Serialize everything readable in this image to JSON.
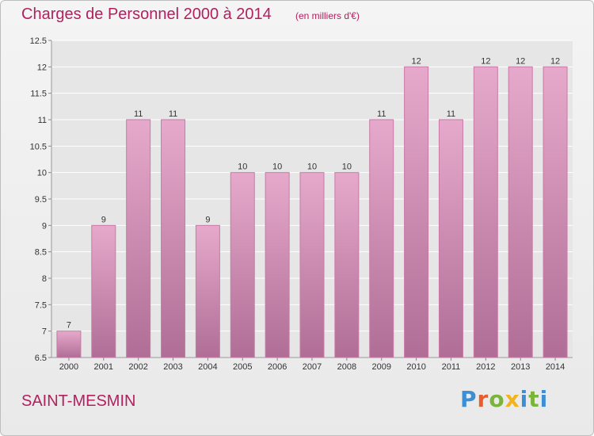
{
  "header": {
    "title": "Charges de Personnel 2000 à 2014",
    "subtitle": "(en milliers d'€)"
  },
  "footer": {
    "city": "SAINT-MESMIN",
    "logo_letters": [
      "P",
      "r",
      "o",
      "x",
      "i",
      "t",
      "i"
    ]
  },
  "chart_data": {
    "type": "bar",
    "title": "Charges de Personnel 2000 à 2014",
    "subtitle": "(en milliers d'€)",
    "xlabel": "",
    "ylabel": "",
    "categories": [
      "2000",
      "2001",
      "2002",
      "2003",
      "2004",
      "2005",
      "2006",
      "2007",
      "2008",
      "2009",
      "2010",
      "2011",
      "2012",
      "2013",
      "2014"
    ],
    "values": [
      7,
      9,
      11,
      11,
      9,
      10,
      10,
      10,
      10,
      11,
      12,
      11,
      12,
      12,
      12
    ],
    "data_labels": [
      "7",
      "9",
      "11",
      "11",
      "9",
      "10",
      "10",
      "10",
      "10",
      "11",
      "12",
      "11",
      "12",
      "12",
      "12"
    ],
    "ylim": [
      6.5,
      12.5
    ],
    "yticks": [
      6.5,
      7,
      7.5,
      8,
      8.5,
      9,
      9.5,
      10,
      10.5,
      11,
      11.5,
      12,
      12.5
    ],
    "ytick_labels": [
      "6.5",
      "7",
      "7.5",
      "8",
      "8.5",
      "9",
      "9.5",
      "10",
      "10.5",
      "11",
      "11.5",
      "12",
      "12.5"
    ],
    "grid": true,
    "colors": {
      "bar_top": "#e6a9cb",
      "bar_bottom": "#b06e96",
      "bar_stroke": "#c97aa6",
      "grid": "#ffffff",
      "text": "#333333",
      "accent": "#b0215f"
    }
  }
}
